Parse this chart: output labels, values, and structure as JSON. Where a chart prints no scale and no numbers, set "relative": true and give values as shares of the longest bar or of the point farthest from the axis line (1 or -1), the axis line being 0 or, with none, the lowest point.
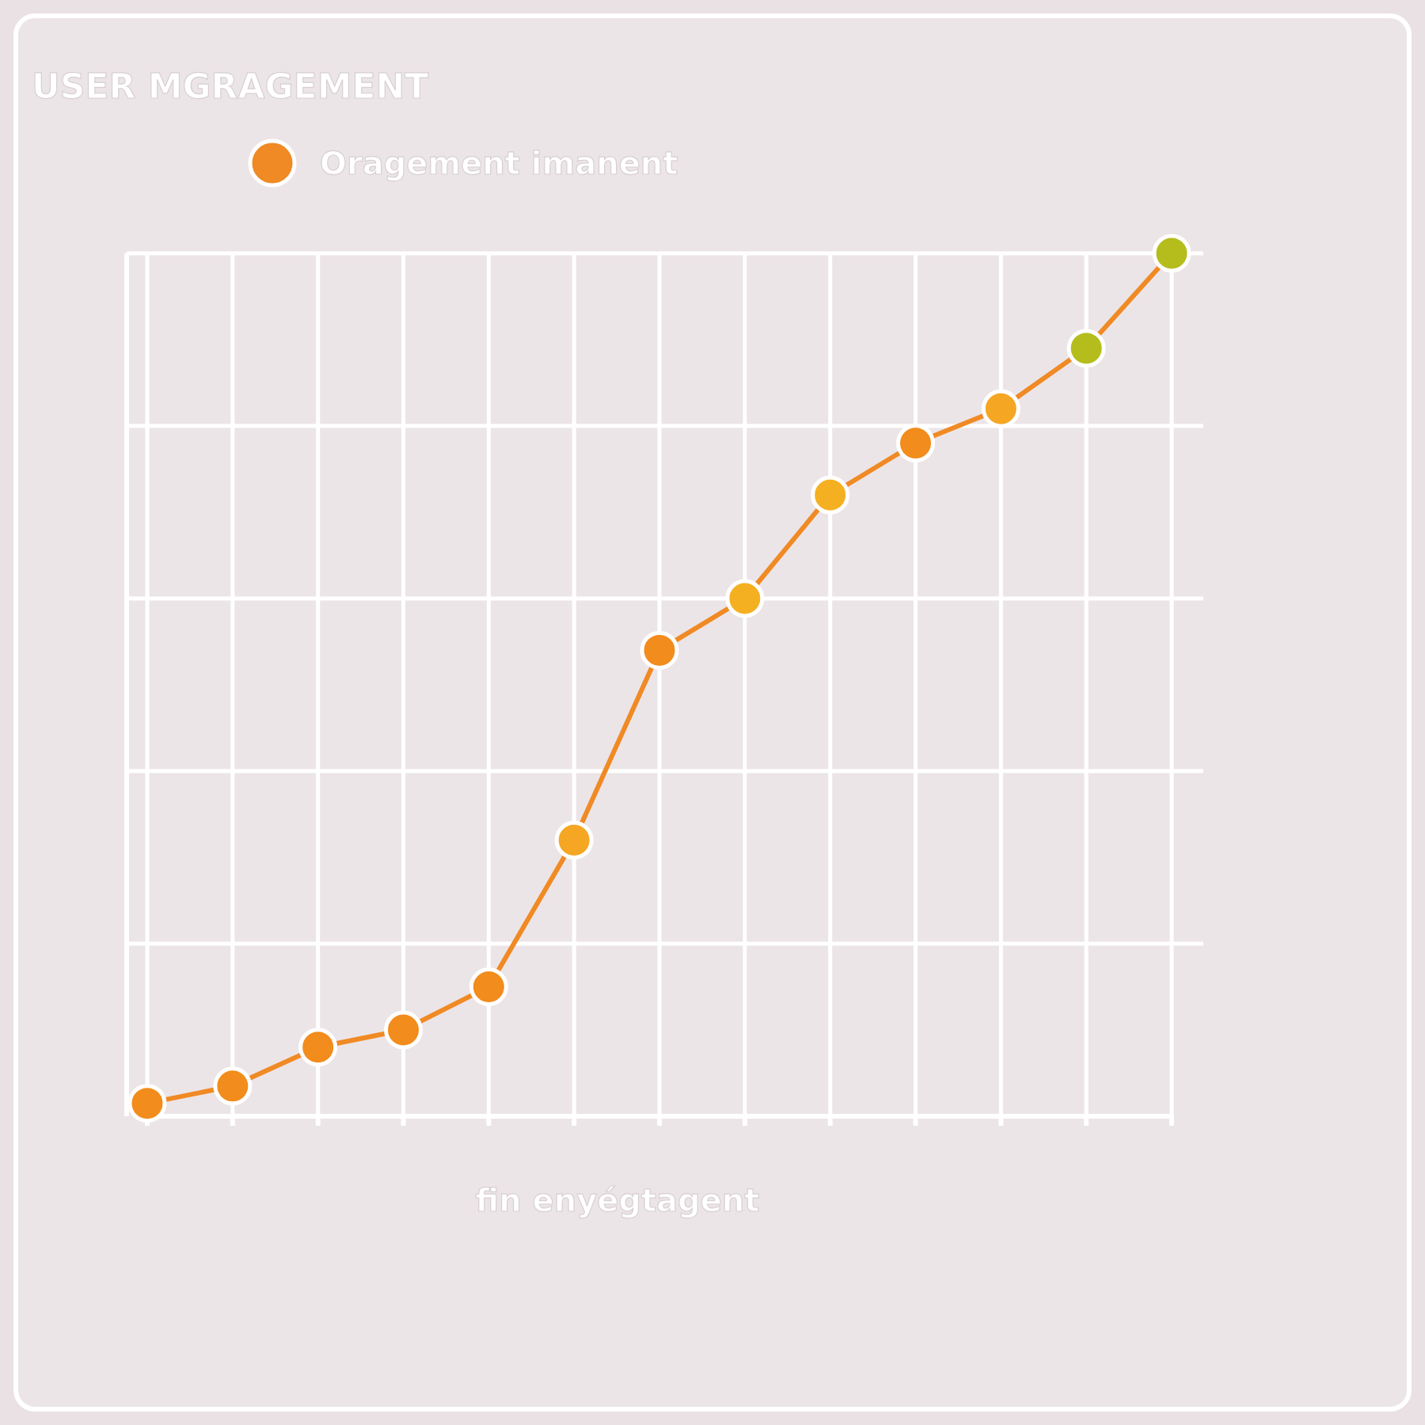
{
  "chart_data": {
    "type": "line",
    "title": "USER MGRAGEMENT",
    "xlabel": "fin enyégtagent",
    "relative": true,
    "categories": [
      null,
      null,
      null,
      null,
      null,
      null,
      null,
      null,
      null,
      null,
      null,
      null,
      null
    ],
    "series": [
      {
        "name": "Oragement imanent",
        "color": "#f08a24",
        "colors": [
          "#f28c1c",
          "#f28c1c",
          "#f28c1c",
          "#f28c1c",
          "#f28c1c",
          "#f5a623",
          "#f28c1c",
          "#f5b021",
          "#f5b021",
          "#f28c1c",
          "#f5a623",
          "#b5bd1c",
          "#b5bd1c"
        ],
        "values": [
          0.015,
          0.035,
          0.08,
          0.1,
          0.15,
          0.32,
          0.54,
          0.6,
          0.72,
          0.78,
          0.82,
          0.89,
          1
        ]
      }
    ],
    "grid": true,
    "legend": "top left",
    "marker": "circle",
    "line_style": "solid"
  }
}
